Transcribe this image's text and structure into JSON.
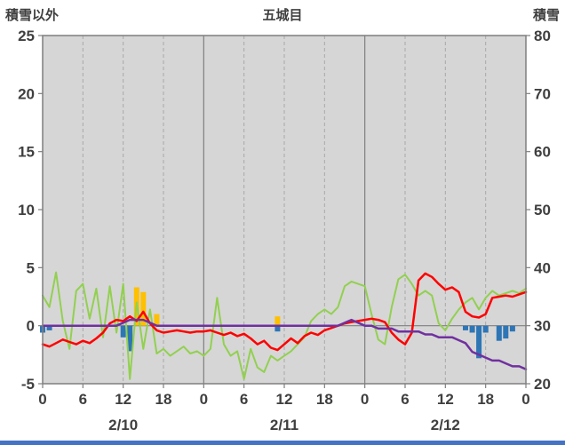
{
  "chart_data": {
    "type": "line",
    "title": "五城目",
    "left_axis": {
      "label": "積雪以外",
      "min": -5,
      "max": 25,
      "ticks": [
        -5,
        0,
        5,
        10,
        15,
        20,
        25
      ]
    },
    "right_axis": {
      "label": "積雪",
      "min": 20,
      "max": 80,
      "ticks": [
        20,
        30,
        40,
        50,
        60,
        70,
        80
      ]
    },
    "x_axis": {
      "min": 0,
      "max": 72,
      "tick_interval": 6,
      "tick_labels": [
        "0",
        "6",
        "12",
        "18",
        "0",
        "6",
        "12",
        "18",
        "0",
        "6",
        "12",
        "18",
        "0"
      ],
      "day_labels": [
        "2/10",
        "2/11",
        "2/12"
      ],
      "day_boundaries": [
        0,
        24,
        48,
        72
      ]
    },
    "grid": "vertical-only",
    "legend": "none",
    "colors": {
      "plot_bg": "#d6d6d6",
      "grid": "#a8a8a8",
      "grid_major": "#7f7f7f",
      "border": "#7f7f7f",
      "zero_line": "#7f7f7f",
      "text": "#3f3f3f",
      "accent_bottom": "#4472c4"
    },
    "series": [
      {
        "name": "orange-bars",
        "type": "bar",
        "axis": "left",
        "color": "#ffc000",
        "x": [
          14,
          15,
          17,
          35
        ],
        "values": [
          3.3,
          2.9,
          1.0,
          0.8
        ]
      },
      {
        "name": "blue-bars",
        "type": "bar",
        "axis": "left",
        "color": "#2e75b6",
        "x": [
          0,
          1,
          12,
          13,
          35,
          63,
          64,
          65,
          66,
          68,
          69,
          70
        ],
        "values": [
          -0.6,
          -0.4,
          -1.0,
          -2.2,
          -0.5,
          -0.4,
          -0.6,
          -2.8,
          -0.6,
          -1.3,
          -1.1,
          -0.5
        ]
      },
      {
        "name": "green-line",
        "type": "line",
        "axis": "left",
        "color": "#92d050",
        "width": 2,
        "values": [
          2.6,
          1.6,
          4.6,
          0.4,
          -2,
          3,
          3.6,
          0.6,
          3.2,
          -1,
          3.4,
          -0.6,
          3.6,
          -4.6,
          2,
          -2,
          1.4,
          -2.4,
          -2,
          -2.6,
          -2.2,
          -1.8,
          -2.4,
          -2.2,
          -2.6,
          -2,
          2.4,
          -1.6,
          -2.6,
          -2.2,
          -4.6,
          -2,
          -3.6,
          -4,
          -2.6,
          -3,
          -2.6,
          -2.2,
          -1.6,
          -1,
          0.4,
          1,
          1.4,
          1,
          1.6,
          3.4,
          3.8,
          3.6,
          3.4,
          1,
          -1.2,
          -1.6,
          1.6,
          4,
          4.4,
          3.6,
          2.6,
          3,
          2.6,
          0.2,
          -0.4,
          0.6,
          1.4,
          2,
          2.4,
          1.4,
          2.4,
          3,
          2.6,
          2.8,
          3,
          2.8,
          3.2
        ]
      },
      {
        "name": "red-line",
        "type": "line",
        "axis": "left",
        "color": "#ff0000",
        "width": 2.5,
        "values": [
          -1.6,
          -1.8,
          -1.5,
          -1.2,
          -1.4,
          -1.6,
          -1.3,
          -1.5,
          -1.1,
          -0.6,
          0.2,
          0.5,
          0.4,
          0.8,
          0.4,
          1.2,
          0.2,
          -0.4,
          -0.6,
          -0.5,
          -0.4,
          -0.5,
          -0.6,
          -0.5,
          -0.5,
          -0.4,
          -0.6,
          -0.8,
          -0.6,
          -0.9,
          -0.7,
          -1.1,
          -1.6,
          -1.3,
          -1.9,
          -2.1,
          -1.6,
          -1.1,
          -1.5,
          -0.9,
          -0.6,
          -0.8,
          -0.4,
          -0.2,
          0,
          0.2,
          0.3,
          0.4,
          0.5,
          0.6,
          0.5,
          0.3,
          -0.6,
          -1.2,
          -1.6,
          -0.6,
          3.9,
          4.5,
          4.2,
          3.6,
          3.1,
          3.3,
          2.9,
          1.2,
          0.8,
          0.7,
          1,
          2.4,
          2.5,
          2.6,
          2.5,
          2.7,
          2.9
        ]
      },
      {
        "name": "purple-line",
        "type": "line",
        "axis": "right",
        "color": "#7030a0",
        "width": 2.5,
        "values": [
          30,
          30,
          30,
          30,
          30,
          30,
          30,
          30,
          30,
          30,
          30,
          30,
          30.5,
          31,
          31,
          31,
          30.5,
          30,
          30,
          30,
          30,
          30,
          30,
          30,
          30,
          30,
          30,
          30,
          30,
          30,
          30,
          30,
          30,
          30,
          30,
          30,
          30,
          30,
          30,
          30,
          30,
          30,
          30,
          30,
          30,
          30.5,
          31,
          30.5,
          30,
          30,
          29.5,
          29.5,
          29.5,
          29,
          29,
          29,
          29,
          28.5,
          28.5,
          28,
          28,
          28,
          27.5,
          27,
          25.5,
          25,
          24.5,
          24,
          24,
          23.5,
          23,
          23,
          22.5
        ]
      }
    ]
  }
}
